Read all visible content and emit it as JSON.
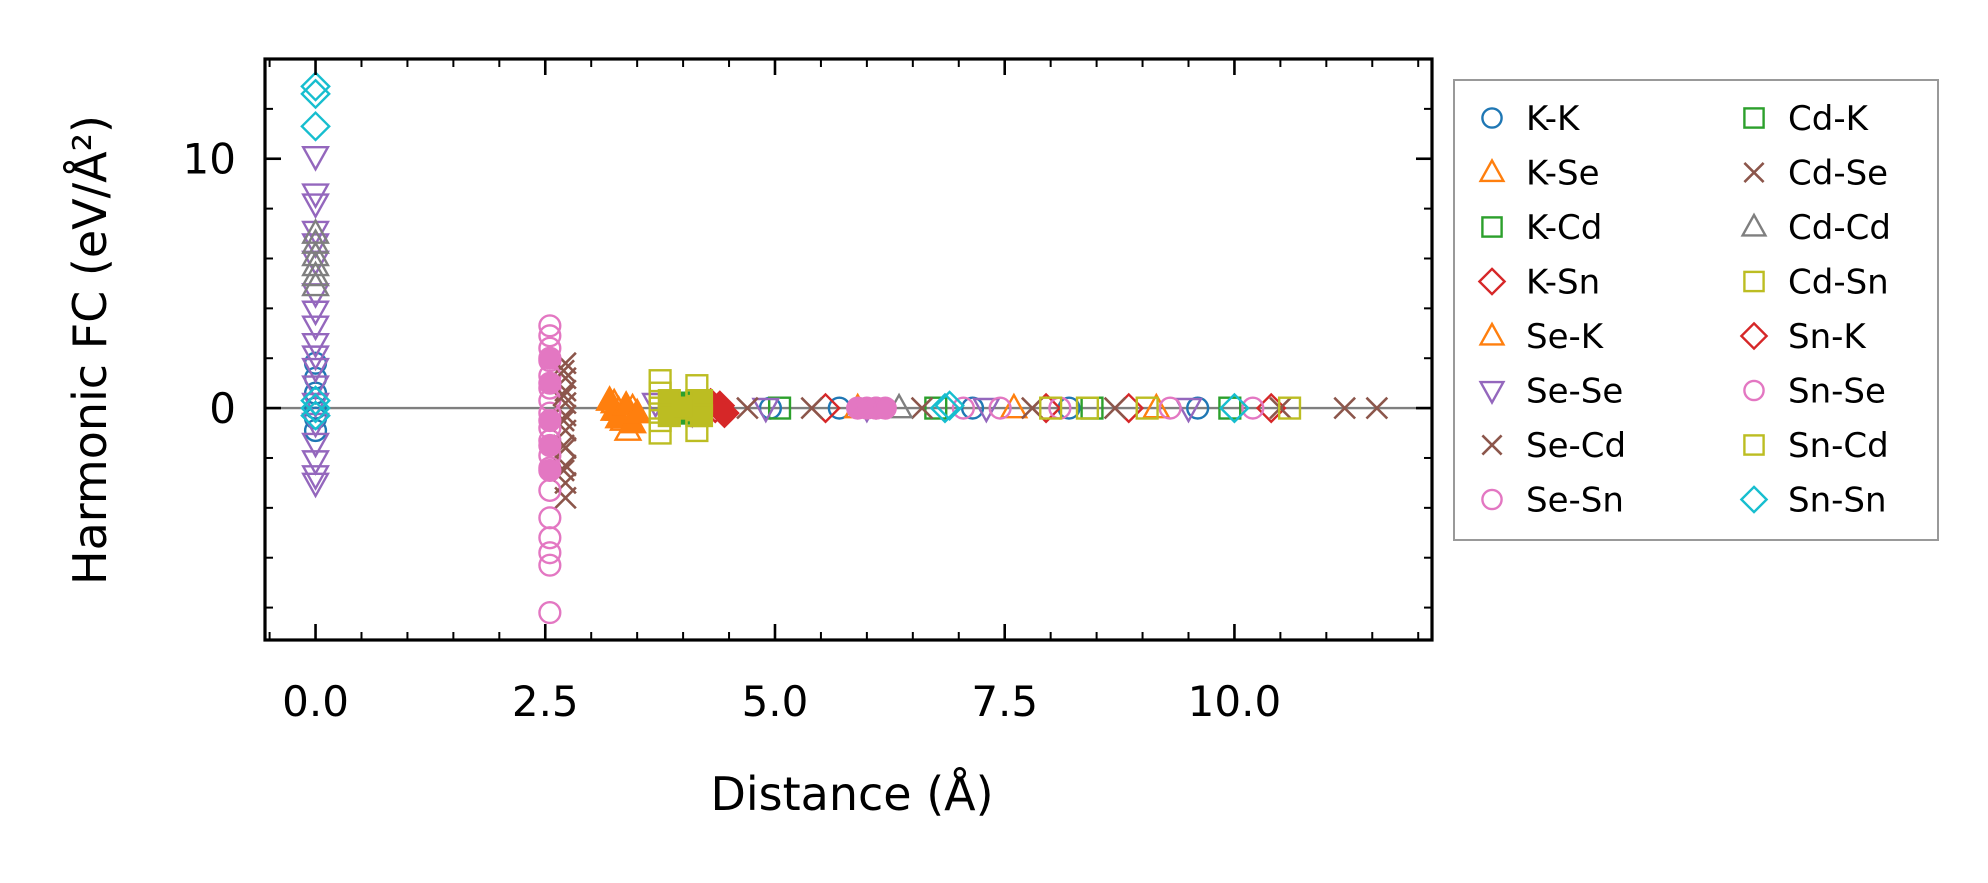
{
  "chart_data": {
    "type": "scatter",
    "title": "",
    "xlabel": "Distance (Å)",
    "ylabel": "Harmonic FC (eV/Å²)",
    "xlim": [
      -0.55,
      12.15
    ],
    "ylim": [
      -9.3,
      14.0
    ],
    "x_ticks": [
      0.0,
      2.5,
      5.0,
      7.5,
      10.0
    ],
    "x_tick_labels": [
      "0.0",
      "2.5",
      "5.0",
      "7.5",
      "10.0"
    ],
    "y_ticks": [
      0,
      10
    ],
    "y_tick_labels": [
      "0",
      "10"
    ],
    "zero_line": true,
    "legend_location": "outside-right",
    "series": [
      {
        "name": "K-K",
        "marker": "circle",
        "color": "#1f77b4",
        "filled": false,
        "points": [
          [
            0.0,
            1.8
          ],
          [
            0.0,
            1.2
          ],
          [
            0.0,
            0.6
          ],
          [
            0.0,
            0.0
          ],
          [
            0.0,
            -0.4
          ],
          [
            0.0,
            -0.9
          ],
          [
            4.95,
            0.0
          ],
          [
            5.7,
            0.0
          ],
          [
            7.15,
            0.0
          ],
          [
            8.2,
            0.0
          ],
          [
            9.6,
            0.0
          ]
        ]
      },
      {
        "name": "K-Se",
        "marker": "triangle-up",
        "color": "#ff7f0e",
        "filled": false,
        "points": [
          [
            3.25,
            0.2
          ],
          [
            3.3,
            -0.1
          ],
          [
            3.35,
            -0.5
          ],
          [
            3.4,
            -0.9
          ],
          [
            3.45,
            0.0
          ],
          [
            5.9,
            0.0
          ],
          [
            7.6,
            0.0
          ],
          [
            9.15,
            0.0
          ]
        ]
      },
      {
        "name": "K-Cd",
        "marker": "square",
        "color": "#2ca02c",
        "filled": false,
        "points": [
          [
            3.95,
            0.0
          ],
          [
            5.05,
            0.0
          ],
          [
            6.75,
            0.0
          ],
          [
            8.45,
            0.0
          ],
          [
            9.95,
            0.0
          ]
        ]
      },
      {
        "name": "K-Sn",
        "marker": "diamond",
        "color": "#d62728",
        "filled": false,
        "points": [
          [
            4.35,
            0.0
          ],
          [
            5.55,
            0.0
          ],
          [
            7.95,
            0.0
          ],
          [
            8.85,
            0.0
          ],
          [
            10.4,
            0.0
          ]
        ]
      },
      {
        "name": "Se-K",
        "marker": "triangle-up",
        "color": "#ff7f0e",
        "filled": true,
        "points": [
          [
            3.2,
            0.3
          ],
          [
            3.25,
            -0.1
          ],
          [
            3.3,
            -0.4
          ],
          [
            3.38,
            0.1
          ],
          [
            3.45,
            -0.6
          ],
          [
            3.5,
            -0.2
          ]
        ]
      },
      {
        "name": "Se-Se",
        "marker": "triangle-down",
        "color": "#9467bd",
        "filled": false,
        "points": [
          [
            0.0,
            10.1
          ],
          [
            0.0,
            8.6
          ],
          [
            0.0,
            8.2
          ],
          [
            0.0,
            7.1
          ],
          [
            0.0,
            6.6
          ],
          [
            0.0,
            5.9
          ],
          [
            0.0,
            4.6
          ],
          [
            0.0,
            3.9
          ],
          [
            0.0,
            3.3
          ],
          [
            0.0,
            2.6
          ],
          [
            0.0,
            2.1
          ],
          [
            0.0,
            1.6
          ],
          [
            0.0,
            0.9
          ],
          [
            0.0,
            0.2
          ],
          [
            0.0,
            -0.6
          ],
          [
            0.0,
            -1.4
          ],
          [
            0.0,
            -2.1
          ],
          [
            0.0,
            -2.7
          ],
          [
            0.0,
            -3.0
          ],
          [
            3.7,
            0.2
          ],
          [
            4.1,
            -0.2
          ],
          [
            4.9,
            0.0
          ],
          [
            6.0,
            0.0
          ],
          [
            7.3,
            0.0
          ],
          [
            9.5,
            0.0
          ]
        ]
      },
      {
        "name": "Se-Cd",
        "marker": "x",
        "color": "#8c564b",
        "filled": false,
        "points": [
          [
            2.72,
            1.8
          ],
          [
            2.72,
            1.2
          ],
          [
            2.72,
            0.7
          ],
          [
            2.72,
            0.2
          ],
          [
            2.72,
            -0.3
          ],
          [
            2.72,
            -0.9
          ],
          [
            2.72,
            -1.6
          ],
          [
            2.72,
            -2.3
          ],
          [
            2.72,
            -3.0
          ],
          [
            2.72,
            -3.6
          ],
          [
            4.7,
            0.0
          ],
          [
            5.4,
            0.0
          ],
          [
            6.6,
            0.0
          ],
          [
            7.8,
            0.0
          ],
          [
            8.7,
            0.0
          ],
          [
            10.5,
            0.0
          ],
          [
            11.2,
            0.0
          ],
          [
            11.55,
            0.0
          ]
        ]
      },
      {
        "name": "Se-Sn",
        "marker": "circle",
        "color": "#e377c2",
        "filled": false,
        "points": [
          [
            2.55,
            3.3
          ],
          [
            2.55,
            2.9
          ],
          [
            2.55,
            2.4
          ],
          [
            2.55,
            1.9
          ],
          [
            2.55,
            1.3
          ],
          [
            2.55,
            0.8
          ],
          [
            2.55,
            0.3
          ],
          [
            2.55,
            -0.2
          ],
          [
            2.55,
            -0.8
          ],
          [
            2.55,
            -1.3
          ],
          [
            2.55,
            -1.9
          ],
          [
            2.55,
            -2.4
          ],
          [
            2.55,
            -3.3
          ],
          [
            2.55,
            -4.4
          ],
          [
            2.55,
            -5.2
          ],
          [
            2.55,
            -5.8
          ],
          [
            2.55,
            -6.3
          ],
          [
            2.55,
            -8.2
          ],
          [
            6.1,
            0.0
          ],
          [
            7.05,
            0.0
          ],
          [
            7.45,
            0.0
          ],
          [
            8.1,
            0.0
          ],
          [
            9.3,
            0.0
          ],
          [
            10.2,
            0.0
          ]
        ]
      },
      {
        "name": "Cd-K",
        "marker": "square",
        "color": "#2ca02c",
        "filled": true,
        "points": [
          [
            3.9,
            0.1
          ],
          [
            4.0,
            -0.2
          ],
          [
            4.05,
            0.2
          ]
        ]
      },
      {
        "name": "Cd-Se",
        "marker": "x",
        "color": "#8c564b",
        "filled": true,
        "points": [
          [
            2.7,
            1.5
          ],
          [
            2.7,
            0.5
          ],
          [
            2.7,
            -0.5
          ],
          [
            2.7,
            -1.5
          ],
          [
            2.7,
            -2.5
          ]
        ]
      },
      {
        "name": "Cd-Cd",
        "marker": "triangle-up",
        "color": "#7f7f7f",
        "filled": false,
        "points": [
          [
            0.0,
            7.0
          ],
          [
            0.0,
            6.6
          ],
          [
            0.0,
            6.1
          ],
          [
            0.0,
            5.7
          ],
          [
            0.0,
            5.3
          ],
          [
            0.0,
            4.9
          ],
          [
            6.35,
            0.0
          ]
        ]
      },
      {
        "name": "Cd-Sn",
        "marker": "square",
        "color": "#bcbd22",
        "filled": false,
        "points": [
          [
            3.75,
            1.1
          ],
          [
            3.75,
            0.6
          ],
          [
            3.75,
            0.0
          ],
          [
            3.75,
            -0.5
          ],
          [
            3.75,
            -1.0
          ],
          [
            4.15,
            0.9
          ],
          [
            4.15,
            0.3
          ],
          [
            4.15,
            -0.3
          ],
          [
            4.15,
            -0.9
          ],
          [
            8.0,
            0.0
          ],
          [
            8.4,
            0.0
          ],
          [
            9.05,
            0.0
          ],
          [
            10.6,
            0.0
          ]
        ]
      },
      {
        "name": "Sn-K",
        "marker": "diamond",
        "color": "#d62728",
        "filled": true,
        "points": [
          [
            4.4,
            0.1
          ],
          [
            4.45,
            -0.2
          ],
          [
            4.3,
            0.2
          ]
        ]
      },
      {
        "name": "Sn-Se",
        "marker": "circle",
        "color": "#e377c2",
        "filled": true,
        "points": [
          [
            2.55,
            2.0
          ],
          [
            2.55,
            1.0
          ],
          [
            2.55,
            -0.5
          ],
          [
            2.55,
            -1.5
          ],
          [
            2.55,
            -2.5
          ],
          [
            5.9,
            0.0
          ],
          [
            6.0,
            0.0
          ],
          [
            6.1,
            0.0
          ],
          [
            6.2,
            0.0
          ]
        ]
      },
      {
        "name": "Sn-Cd",
        "marker": "square",
        "color": "#bcbd22",
        "filled": true,
        "points": [
          [
            3.85,
            0.3
          ],
          [
            3.85,
            -0.3
          ],
          [
            4.2,
            0.3
          ],
          [
            4.2,
            -0.3
          ],
          [
            4.0,
            0.0
          ]
        ]
      },
      {
        "name": "Sn-Sn",
        "marker": "diamond",
        "color": "#17becf",
        "filled": false,
        "points": [
          [
            0.0,
            12.9
          ],
          [
            0.0,
            12.6
          ],
          [
            0.0,
            11.3
          ],
          [
            0.0,
            0.3
          ],
          [
            0.0,
            0.0
          ],
          [
            0.0,
            -0.3
          ],
          [
            6.85,
            0.0
          ],
          [
            6.9,
            0.1
          ],
          [
            10.0,
            0.0
          ]
        ]
      }
    ]
  }
}
